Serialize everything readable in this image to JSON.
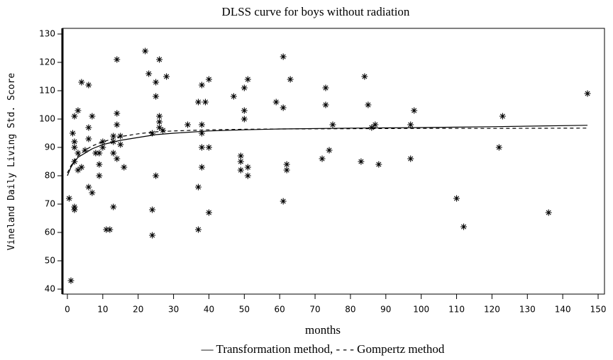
{
  "chart_data": {
    "type": "scatter",
    "title": "DLSS curve for boys without radiation",
    "x_label": "months",
    "y_label": "Vineland Daily Living Std. Score",
    "caption": "— Transformation method, - - - Gompertz method",
    "xlim": [
      -1.4,
      151.8
    ],
    "ylim": [
      38.25,
      132
    ],
    "xticks": [
      0,
      10,
      20,
      30,
      40,
      50,
      60,
      70,
      80,
      90,
      100,
      110,
      120,
      130,
      140,
      150
    ],
    "yticks": [
      40,
      50,
      60,
      70,
      80,
      90,
      100,
      110,
      120,
      130
    ],
    "series": [
      {
        "kind": "points",
        "color": "#000000",
        "x": [
          1,
          0.5,
          2,
          2,
          1.5,
          2,
          2,
          2,
          3,
          3,
          2,
          3,
          4,
          4,
          5,
          6,
          6,
          6,
          6,
          7,
          7,
          8,
          9,
          9,
          9,
          10,
          10,
          11,
          12,
          13,
          13,
          13,
          13,
          14,
          14,
          14,
          14,
          15,
          15,
          16,
          22,
          23,
          24,
          24,
          25,
          24,
          25,
          25,
          26,
          26,
          26,
          26,
          27,
          28,
          34,
          37,
          37,
          37,
          38,
          38,
          38,
          38,
          39,
          38,
          40,
          40,
          40,
          47,
          49,
          49,
          49,
          50,
          50,
          50,
          51,
          51,
          51,
          59,
          61,
          61,
          61,
          62,
          62,
          63,
          72,
          73,
          73,
          74,
          75,
          83,
          84,
          85,
          86,
          87,
          88,
          97,
          97,
          98,
          110,
          112,
          122,
          123,
          136,
          147
        ],
        "values": [
          43,
          72,
          68,
          69,
          95,
          101,
          92,
          90,
          88,
          103,
          85,
          82,
          83,
          113,
          89,
          112,
          93,
          97,
          76,
          101,
          74,
          88,
          80,
          84,
          88,
          90,
          92,
          61,
          61,
          69,
          88,
          92,
          94,
          121,
          86,
          102,
          98,
          94,
          91,
          83,
          124,
          116,
          68,
          59,
          80,
          95,
          108,
          113,
          121,
          101,
          99,
          97,
          96,
          115,
          98,
          61,
          106,
          76,
          83,
          95,
          98,
          112,
          106,
          90,
          90,
          67,
          114,
          108,
          87,
          85,
          82,
          100,
          111,
          103,
          80,
          83,
          114,
          106,
          122,
          104,
          71,
          84,
          82,
          114,
          86,
          111,
          105,
          89,
          98,
          85,
          115,
          105,
          97,
          98,
          84,
          86,
          98,
          103,
          72,
          62,
          90,
          101,
          67,
          109
        ]
      },
      {
        "kind": "line",
        "style": "solid",
        "color": "#000000",
        "x": [
          0,
          1,
          2,
          3,
          5,
          7,
          10,
          15,
          20,
          25,
          30,
          40,
          50,
          60,
          80,
          100,
          120,
          147
        ],
        "values": [
          80,
          83,
          85,
          86.5,
          88,
          89.5,
          91,
          92.5,
          93.5,
          94.5,
          95,
          95.8,
          96.2,
          96.5,
          96.8,
          97,
          97.3,
          97.8
        ]
      },
      {
        "kind": "line",
        "style": "dashed",
        "color": "#000000",
        "x": [
          0,
          1,
          2,
          3,
          5,
          7,
          10,
          15,
          20,
          25,
          30,
          40,
          50,
          60,
          80,
          100,
          120,
          147
        ],
        "values": [
          81,
          83.5,
          85.5,
          87,
          89,
          90.5,
          92,
          93.8,
          94.8,
          95.5,
          95.8,
          96.2,
          96.4,
          96.5,
          96.6,
          96.7,
          96.7,
          96.8
        ]
      }
    ]
  }
}
